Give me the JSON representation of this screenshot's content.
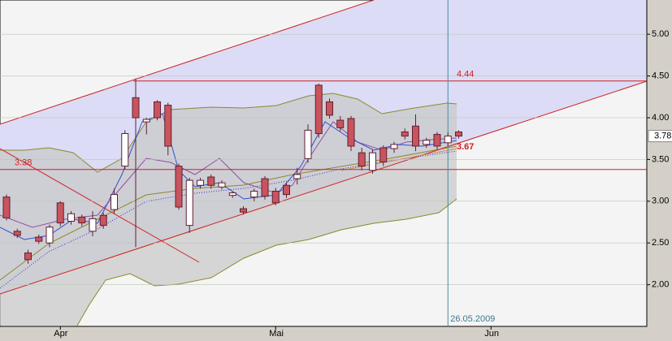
{
  "chart_data": {
    "type": "candlestick",
    "categories": [
      null,
      null,
      null,
      null,
      null,
      "Apr",
      null,
      null,
      null,
      null,
      null,
      null,
      null,
      null,
      null,
      null,
      null,
      null,
      null,
      null,
      null,
      null,
      null,
      null,
      null,
      "Mai",
      null,
      null,
      null,
      null,
      null,
      null,
      null,
      null,
      null,
      null,
      null,
      null,
      null,
      null,
      null,
      null,
      null,
      null,
      null,
      "Jun",
      null
    ],
    "open": [
      3.05,
      2.64,
      2.38,
      2.57,
      2.5,
      2.98,
      2.76,
      2.81,
      2.64,
      2.83,
      2.9,
      3.42,
      4.24,
      3.95,
      4.19,
      4.15,
      3.42,
      2.71,
      3.19,
      3.29,
      3.17,
      3.07,
      2.91,
      3.05,
      3.27,
      3.12,
      3.19,
      3.27,
      3.51,
      4.39,
      4.19,
      3.97,
      3.99,
      3.58,
      3.37,
      3.64,
      3.63,
      3.83,
      3.9,
      3.68,
      3.8,
      3.7,
      3.83,
      null,
      null,
      null,
      null
    ],
    "high": [
      3.08,
      2.67,
      2.42,
      2.6,
      2.72,
      3.0,
      2.88,
      2.84,
      2.88,
      2.86,
      3.15,
      3.85,
      4.47,
      4.0,
      4.21,
      4.18,
      3.45,
      3.28,
      3.28,
      3.32,
      3.25,
      3.12,
      2.94,
      3.15,
      3.3,
      3.16,
      3.22,
      3.4,
      3.92,
      4.41,
      4.23,
      4.02,
      4.02,
      3.64,
      3.62,
      3.67,
      3.71,
      3.87,
      4.04,
      3.76,
      3.83,
      3.82,
      3.85,
      null,
      null,
      null,
      null
    ],
    "low": [
      2.77,
      2.56,
      2.25,
      2.49,
      2.45,
      2.7,
      2.72,
      2.7,
      2.58,
      2.67,
      2.85,
      3.38,
      2.45,
      3.8,
      3.97,
      3.55,
      2.9,
      2.62,
      3.15,
      3.15,
      3.14,
      3.04,
      2.84,
      3.0,
      3.02,
      2.95,
      3.04,
      3.2,
      3.46,
      3.76,
      3.99,
      3.84,
      3.6,
      3.37,
      3.33,
      3.42,
      3.58,
      3.74,
      3.6,
      3.64,
      3.62,
      3.66,
      3.75,
      null,
      null,
      null,
      null
    ],
    "close": [
      2.8,
      2.59,
      2.3,
      2.52,
      2.69,
      2.74,
      2.85,
      2.74,
      2.79,
      2.71,
      3.08,
      3.81,
      4.0,
      3.98,
      4.0,
      3.66,
      2.93,
      3.25,
      3.25,
      3.19,
      3.22,
      3.1,
      2.87,
      3.12,
      3.06,
      2.98,
      3.08,
      3.32,
      3.85,
      3.81,
      4.03,
      3.88,
      3.66,
      3.42,
      3.58,
      3.47,
      3.68,
      3.78,
      3.66,
      3.73,
      3.66,
      3.78,
      3.78,
      null,
      null,
      null,
      null
    ],
    "up_color": "#ffffff",
    "down_color": "#c9545e",
    "ylim": [
      1.52,
      5.41
    ],
    "yticks": [
      {
        "value": 2,
        "label": "2.00"
      },
      {
        "value": 2.5,
        "label": "2.50"
      },
      {
        "value": 3,
        "label": "3.00"
      },
      {
        "value": 3.5,
        "label": "3.50"
      },
      {
        "value": 4,
        "label": "4.00"
      },
      {
        "value": 4.5,
        "label": "4.50"
      },
      {
        "value": 5,
        "label": "5.00"
      }
    ],
    "grid": true,
    "levels": [
      {
        "value": 4.44,
        "label": "4.44"
      },
      {
        "value": 3.38,
        "label": "3.38"
      }
    ],
    "support_label": {
      "value": 3.67,
      "label": "3.67"
    },
    "last_price": {
      "value": 3.78,
      "label": "3.78"
    },
    "cursor": {
      "index": 41,
      "label": "26.05.2009"
    }
  }
}
